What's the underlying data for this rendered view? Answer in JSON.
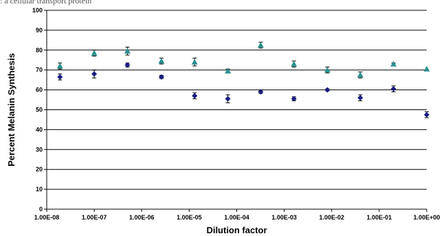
{
  "caption": ": a cellular transport protein",
  "chart_data": {
    "type": "scatter",
    "title": "",
    "xlabel": "Dilution factor",
    "ylabel": "Percent Melanin Synthesis",
    "x_scale": "log",
    "xlim": [
      1e-08,
      1
    ],
    "ylim": [
      0,
      100
    ],
    "y_ticks": [
      0,
      10,
      20,
      30,
      40,
      50,
      60,
      70,
      80,
      90,
      100
    ],
    "x_ticks": [
      1e-08,
      1e-07,
      1e-06,
      1e-05,
      0.0001,
      0.001,
      0.01,
      0.1,
      1
    ],
    "x_tick_labels": [
      "1.00E-08",
      "1.00E-07",
      "1.00E-06",
      "1.00E-05",
      "1.00E-04",
      "1.00E-03",
      "1.00E-02",
      "1.00E-01",
      "1.00E+00"
    ],
    "grid": "horizontal",
    "series": [
      {
        "marker": "diamond",
        "color": "#1a1a80",
        "points": [
          {
            "x": 1.9e-08,
            "y": 66.5,
            "err": 1.5
          },
          {
            "x": 1e-07,
            "y": 68.0,
            "err": 2.0
          },
          {
            "x": 5e-07,
            "y": 72.5,
            "err": 1.0
          },
          {
            "x": 2.6e-06,
            "y": 66.5,
            "err": 0.8
          },
          {
            "x": 1.3e-05,
            "y": 57.0,
            "err": 1.5
          },
          {
            "x": 6.5e-05,
            "y": 55.5,
            "err": 2.0
          },
          {
            "x": 0.00032,
            "y": 59.0,
            "err": 0.8
          },
          {
            "x": 0.0016,
            "y": 55.5,
            "err": 1.0
          },
          {
            "x": 0.0081,
            "y": 60.0,
            "err": 0.5
          },
          {
            "x": 0.04,
            "y": 56.0,
            "err": 1.5
          },
          {
            "x": 0.2,
            "y": 60.5,
            "err": 1.5
          },
          {
            "x": 1.0,
            "y": 47.5,
            "err": 1.5
          }
        ]
      },
      {
        "marker": "triangle",
        "color": "#2a9090",
        "points": [
          {
            "x": 1.9e-08,
            "y": 72.0,
            "err": 1.5
          },
          {
            "x": 1e-07,
            "y": 78.5,
            "err": 1.5
          },
          {
            "x": 5e-07,
            "y": 79.5,
            "err": 2.0
          },
          {
            "x": 2.6e-06,
            "y": 74.5,
            "err": 1.5
          },
          {
            "x": 1.3e-05,
            "y": 74.0,
            "err": 2.0
          },
          {
            "x": 6.5e-05,
            "y": 69.5,
            "err": 1.0
          },
          {
            "x": 0.00032,
            "y": 82.5,
            "err": 1.5
          },
          {
            "x": 0.0016,
            "y": 73.0,
            "err": 1.5
          },
          {
            "x": 0.0081,
            "y": 70.0,
            "err": 1.5
          },
          {
            "x": 0.04,
            "y": 67.5,
            "err": 1.5
          },
          {
            "x": 0.2,
            "y": 73.0,
            "err": 0.5
          },
          {
            "x": 1.0,
            "y": 70.5,
            "err": 0
          }
        ]
      }
    ]
  }
}
